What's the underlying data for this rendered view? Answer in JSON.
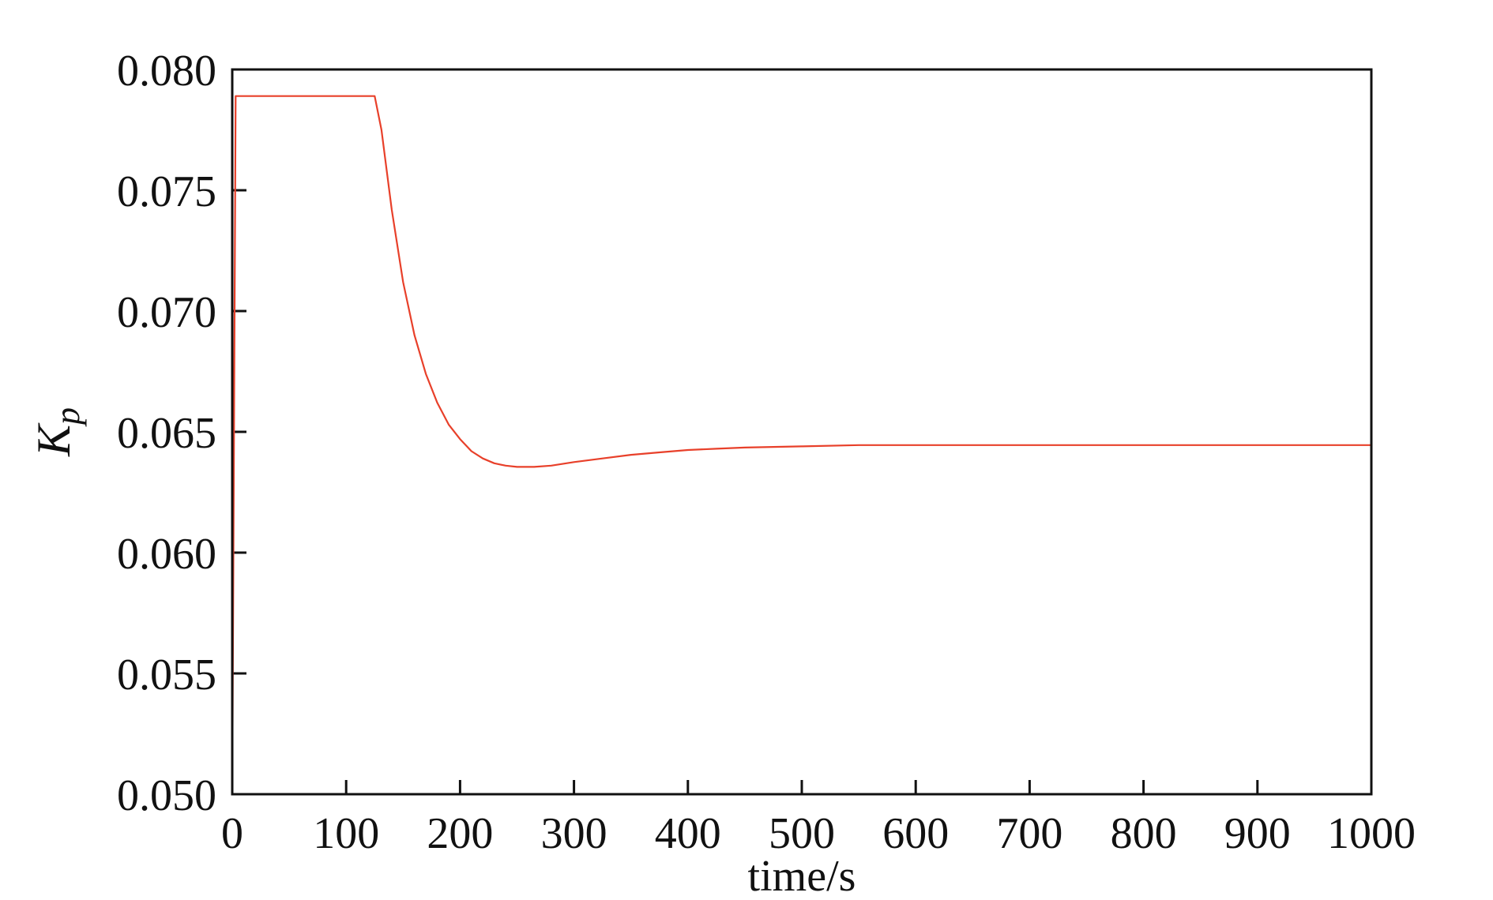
{
  "chart_data": {
    "type": "line",
    "xlabel": "time/s",
    "ylabel_main": "K",
    "ylabel_sub": "p",
    "xlim": [
      0,
      1000
    ],
    "ylim": [
      0.05,
      0.08
    ],
    "grid": false,
    "legend": "none",
    "x_ticks": [
      0,
      100,
      200,
      300,
      400,
      500,
      600,
      700,
      800,
      900,
      1000
    ],
    "x_tick_labels": [
      "0",
      "100",
      "200",
      "300",
      "400",
      "500",
      "600",
      "700",
      "800",
      "900",
      "1000"
    ],
    "y_ticks": [
      0.05,
      0.055,
      0.06,
      0.065,
      0.07,
      0.075,
      0.08
    ],
    "y_tick_labels": [
      "0.050",
      "0.055",
      "0.060",
      "0.065",
      "0.070",
      "0.075",
      "0.080"
    ],
    "colors": {
      "line": "#e8402a",
      "axes": "#111111"
    },
    "series": [
      {
        "x": [
          0,
          3,
          5,
          10,
          50,
          100,
          125,
          131,
          140,
          150,
          160,
          170,
          180,
          190,
          200,
          210,
          220,
          230,
          240,
          250,
          265,
          280,
          300,
          325,
          350,
          375,
          400,
          425,
          450,
          500,
          550,
          600,
          700,
          800,
          900,
          1000
        ],
        "y": [
          0.05,
          0.0789,
          0.0789,
          0.0789,
          0.0789,
          0.0789,
          0.0789,
          0.0775,
          0.0742,
          0.0712,
          0.069,
          0.0674,
          0.0662,
          0.0653,
          0.0647,
          0.0642,
          0.0639,
          0.0637,
          0.0636,
          0.06355,
          0.06355,
          0.0636,
          0.06375,
          0.0639,
          0.06405,
          0.06415,
          0.06425,
          0.0643,
          0.06435,
          0.0644,
          0.06445,
          0.06445,
          0.06445,
          0.06445,
          0.06445,
          0.06445
        ]
      }
    ]
  }
}
